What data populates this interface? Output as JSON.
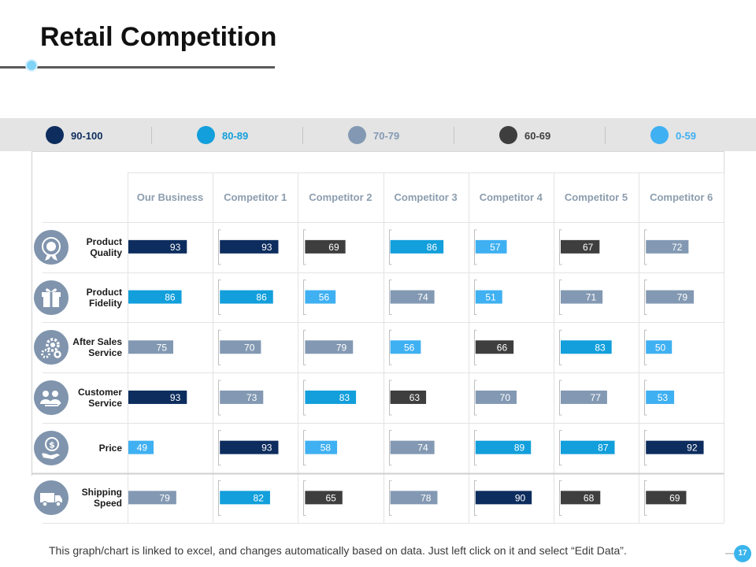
{
  "slide": {
    "title": "Retail Competition",
    "footer": "This graph/chart is linked to excel, and changes automatically  based on data. Just left click on it and select “Edit Data”.",
    "page_number": "17"
  },
  "legend": [
    {
      "label": "90-100",
      "color": "#0d2d5e",
      "text_color": "#0d2d5e"
    },
    {
      "label": "80-89",
      "color": "#129fdb",
      "text_color": "#129fdb"
    },
    {
      "label": "70-79",
      "color": "#8399b3",
      "text_color": "#8399b3"
    },
    {
      "label": "60-69",
      "color": "#3e3e3e",
      "text_color": "#3e3e3e"
    },
    {
      "label": "0-59",
      "color": "#3fb0f2",
      "text_color": "#3fb0f2"
    }
  ],
  "chart_data": {
    "type": "table",
    "columns": [
      "Our Business",
      "Competitor 1",
      "Competitor 2",
      "Competitor 3",
      "Competitor 4",
      "Competitor 5",
      "Competitor 6"
    ],
    "rows": [
      {
        "label": "Product Quality",
        "label_lines": [
          "Product",
          "Quality"
        ],
        "icon": "award-medal-icon",
        "values": [
          93,
          93,
          69,
          86,
          57,
          67,
          72
        ]
      },
      {
        "label": "Product Fidelity",
        "label_lines": [
          "Product",
          "Fidelity"
        ],
        "icon": "gift-box-icon",
        "values": [
          86,
          86,
          56,
          74,
          51,
          71,
          79
        ]
      },
      {
        "label": "After Sales Service",
        "label_lines": [
          "After Sales",
          "Service"
        ],
        "icon": "gears-icon",
        "values": [
          75,
          70,
          79,
          56,
          66,
          83,
          50
        ]
      },
      {
        "label": "Customer Service",
        "label_lines": [
          "Customer",
          "Service"
        ],
        "icon": "customer-group-icon",
        "values": [
          93,
          73,
          83,
          63,
          70,
          77,
          53
        ]
      },
      {
        "label": "Price",
        "label_lines": [
          "Price"
        ],
        "icon": "money-hand-icon",
        "values": [
          49,
          93,
          58,
          74,
          89,
          87,
          92
        ]
      },
      {
        "label": "Shipping Speed",
        "label_lines": [
          "Shipping",
          "Speed"
        ],
        "icon": "delivery-truck-icon",
        "values": [
          79,
          82,
          65,
          78,
          90,
          68,
          69
        ]
      }
    ],
    "value_range": [
      0,
      100
    ],
    "color_bands": [
      {
        "min": 90,
        "max": 100,
        "color": "#0d2d5e"
      },
      {
        "min": 80,
        "max": 89,
        "color": "#129fdb"
      },
      {
        "min": 70,
        "max": 79,
        "color": "#8399b3"
      },
      {
        "min": 60,
        "max": 69,
        "color": "#3e3e3e"
      },
      {
        "min": 0,
        "max": 59,
        "color": "#3fb0f2"
      }
    ]
  }
}
